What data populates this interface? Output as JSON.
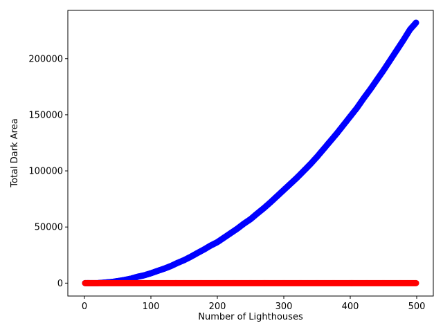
{
  "chart_data": {
    "type": "scatter",
    "title": "",
    "xlabel": "Number of Lighthouses",
    "ylabel": "Total Dark Area",
    "xlim": [
      -25,
      525
    ],
    "ylim": [
      -11500,
      243000
    ],
    "xticks": [
      0,
      100,
      200,
      300,
      400,
      500
    ],
    "yticks": [
      0,
      50000,
      100000,
      150000,
      200000
    ],
    "grid": false,
    "legend": "none",
    "series": [
      {
        "color": "#0000ff",
        "x": [
          1,
          10,
          20,
          30,
          40,
          50,
          60,
          70,
          80,
          90,
          100,
          110,
          120,
          130,
          140,
          150,
          160,
          170,
          180,
          190,
          200,
          210,
          220,
          230,
          240,
          250,
          260,
          270,
          280,
          290,
          300,
          310,
          320,
          330,
          340,
          350,
          360,
          370,
          380,
          390,
          400,
          410,
          420,
          430,
          440,
          450,
          460,
          470,
          480,
          490,
          499
        ],
        "y": [
          0,
          0,
          0,
          500,
          1000,
          1800,
          2800,
          4000,
          5700,
          7000,
          8800,
          10900,
          12900,
          15200,
          18000,
          20500,
          23500,
          26800,
          30000,
          33500,
          36500,
          40500,
          44500,
          48500,
          53000,
          57000,
          62000,
          66800,
          72000,
          77500,
          83000,
          88500,
          94000,
          100000,
          106000,
          112500,
          119500,
          126500,
          133500,
          141000,
          148500,
          156000,
          164500,
          172500,
          181000,
          189500,
          198500,
          207500,
          216500,
          226000,
          232000
        ]
      },
      {
        "color": "#ff0000",
        "x": [
          1,
          10,
          20,
          30,
          40,
          50,
          60,
          70,
          80,
          90,
          100,
          110,
          120,
          130,
          140,
          150,
          160,
          170,
          180,
          190,
          200,
          210,
          220,
          230,
          240,
          250,
          260,
          270,
          280,
          290,
          300,
          310,
          320,
          330,
          340,
          350,
          360,
          370,
          380,
          390,
          400,
          410,
          420,
          430,
          440,
          450,
          460,
          470,
          480,
          490,
          499
        ],
        "y": [
          0,
          0,
          0,
          0,
          0,
          0,
          0,
          0,
          0,
          0,
          0,
          0,
          0,
          0,
          0,
          0,
          0,
          0,
          0,
          0,
          0,
          0,
          0,
          0,
          0,
          0,
          0,
          0,
          0,
          0,
          0,
          0,
          0,
          0,
          0,
          0,
          0,
          0,
          0,
          0,
          0,
          0,
          0,
          0,
          0,
          0,
          0,
          0,
          0,
          0,
          0
        ]
      }
    ]
  }
}
